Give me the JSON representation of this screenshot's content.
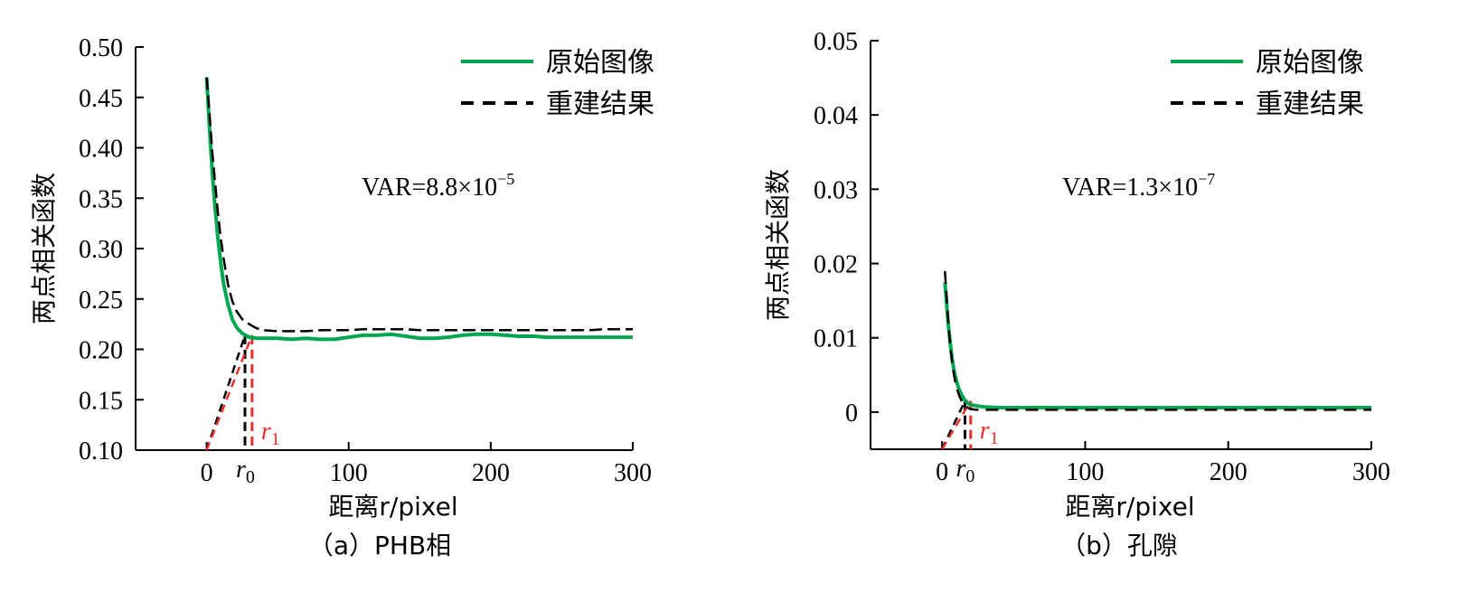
{
  "chart_data": [
    {
      "type": "line",
      "caption": "（a）PHB相",
      "ylabel": "两点相关函数",
      "xlabel": "距离r/pixel",
      "xlim": [
        -50,
        300
      ],
      "ylim": [
        0.1,
        0.5
      ],
      "xticks": [
        0,
        100,
        200,
        300
      ],
      "xtick_labels": [
        "0",
        "100",
        "200",
        "300"
      ],
      "yticks": [
        0.1,
        0.15,
        0.2,
        0.25,
        0.3,
        0.35,
        0.4,
        0.45,
        0.5
      ],
      "ytick_labels": [
        "0.10",
        "0.15",
        "0.20",
        "0.25",
        "0.30",
        "0.35",
        "0.40",
        "0.45",
        "0.50"
      ],
      "annotation": {
        "text": "VAR=8.8×10",
        "sup": "−5"
      },
      "series": [
        {
          "name": "原始图像",
          "color": "#00a650",
          "style": "solid",
          "x": [
            0,
            2,
            4,
            6,
            8,
            10,
            12,
            15,
            18,
            21,
            25,
            30,
            35,
            40,
            50,
            60,
            70,
            80,
            90,
            100,
            110,
            120,
            130,
            140,
            150,
            160,
            170,
            180,
            190,
            200,
            210,
            220,
            230,
            240,
            250,
            260,
            270,
            280,
            290,
            300
          ],
          "y": [
            0.47,
            0.42,
            0.375,
            0.34,
            0.31,
            0.285,
            0.265,
            0.245,
            0.23,
            0.222,
            0.216,
            0.212,
            0.211,
            0.211,
            0.211,
            0.21,
            0.211,
            0.21,
            0.21,
            0.212,
            0.214,
            0.214,
            0.215,
            0.213,
            0.211,
            0.211,
            0.212,
            0.214,
            0.215,
            0.215,
            0.214,
            0.213,
            0.213,
            0.212,
            0.212,
            0.212,
            0.212,
            0.212,
            0.212,
            0.212
          ]
        },
        {
          "name": "重建结果",
          "color": "#000000",
          "style": "dashed",
          "x": [
            0,
            2,
            4,
            6,
            8,
            10,
            12,
            15,
            18,
            21,
            25,
            30,
            35,
            40,
            50,
            60,
            70,
            80,
            90,
            100,
            110,
            120,
            130,
            140,
            150,
            160,
            170,
            180,
            190,
            200,
            210,
            220,
            230,
            240,
            250,
            260,
            270,
            280,
            290,
            300
          ],
          "y": [
            0.47,
            0.435,
            0.395,
            0.365,
            0.335,
            0.31,
            0.29,
            0.265,
            0.248,
            0.238,
            0.23,
            0.225,
            0.221,
            0.219,
            0.218,
            0.218,
            0.218,
            0.219,
            0.219,
            0.219,
            0.22,
            0.22,
            0.22,
            0.22,
            0.219,
            0.219,
            0.219,
            0.219,
            0.219,
            0.219,
            0.219,
            0.219,
            0.219,
            0.219,
            0.219,
            0.219,
            0.219,
            0.22,
            0.22,
            0.22
          ]
        }
      ],
      "markers": [
        {
          "label": "r",
          "sub": "0",
          "color": "#000000",
          "x": 27,
          "y_top": 0.214,
          "x_origin": 0
        },
        {
          "label": "r",
          "sub": "1",
          "color": "#e8302a",
          "x": 32,
          "y_top": 0.214,
          "x_origin": 0
        }
      ]
    },
    {
      "type": "line",
      "caption": "（b）孔隙",
      "ylabel": "两点相关函数",
      "xlabel": "距离r/pixel",
      "xlim": [
        -50,
        300
      ],
      "ylim": [
        -0.005,
        0.05
      ],
      "xticks": [
        0,
        100,
        200,
        300
      ],
      "xtick_labels": [
        "0",
        "100",
        "200",
        "300"
      ],
      "yticks": [
        0,
        0.01,
        0.02,
        0.03,
        0.04,
        0.05
      ],
      "ytick_labels": [
        "0",
        "0.01",
        "0.02",
        "0.03",
        "0.04",
        "0.05"
      ],
      "annotation": {
        "text": "VAR=1.3×10",
        "sup": "−7"
      },
      "series": [
        {
          "name": "原始图像",
          "color": "#00a650",
          "style": "solid",
          "x": [
            2,
            3,
            4,
            5,
            6,
            7,
            8,
            9,
            10,
            12,
            14,
            16,
            18,
            20,
            25,
            30,
            40,
            60,
            80,
            100,
            120,
            140,
            160,
            180,
            200,
            220,
            240,
            260,
            280,
            300
          ],
          "y": [
            0.0175,
            0.015,
            0.0125,
            0.0105,
            0.0088,
            0.0072,
            0.006,
            0.005,
            0.0042,
            0.003,
            0.0022,
            0.0016,
            0.0012,
            0.001,
            0.0008,
            0.0007,
            0.0006,
            0.0006,
            0.0006,
            0.0006,
            0.0006,
            0.0006,
            0.0006,
            0.0006,
            0.0006,
            0.0006,
            0.0006,
            0.0006,
            0.0006,
            0.0006
          ]
        },
        {
          "name": "重建结果",
          "color": "#000000",
          "style": "dashed",
          "x": [
            2,
            3,
            4,
            5,
            6,
            7,
            8,
            9,
            10,
            12,
            14,
            16,
            18,
            20,
            25,
            30,
            40,
            60,
            80,
            100,
            120,
            140,
            160,
            180,
            200,
            220,
            240,
            260,
            280,
            300
          ],
          "y": [
            0.019,
            0.016,
            0.013,
            0.0105,
            0.0085,
            0.0068,
            0.0054,
            0.0043,
            0.0034,
            0.0022,
            0.0014,
            0.0009,
            0.0006,
            0.0004,
            0.0003,
            0.0003,
            0.0003,
            0.0003,
            0.0003,
            0.0003,
            0.0003,
            0.0003,
            0.0003,
            0.0003,
            0.0003,
            0.0003,
            0.0003,
            0.0003,
            0.0003,
            0.0003
          ]
        }
      ],
      "markers": [
        {
          "label": "r",
          "sub": "0",
          "color": "#000000",
          "x": 16,
          "y_top": 0.0015,
          "x_origin": -0.1
        },
        {
          "label": "r",
          "sub": "1",
          "color": "#e8302a",
          "x": 20,
          "y_top": 0.0015,
          "x_origin": 0
        }
      ]
    }
  ]
}
